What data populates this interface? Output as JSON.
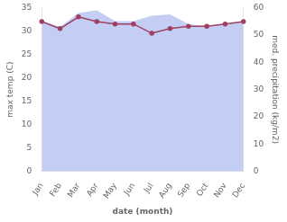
{
  "chart_data": {
    "type": "line",
    "categories": [
      "Jan",
      "Feb",
      "Mar",
      "Apr",
      "May",
      "Jun",
      "Jul",
      "Aug",
      "Sep",
      "Oct",
      "Nov",
      "Dec"
    ],
    "xlabel": "date (month)",
    "ylabel": "max temp (C)",
    "y2label": "med. precipitation (kg/m2)",
    "series": [
      {
        "type": "area",
        "color": "#b0bcf0",
        "axis": "y2",
        "values": [
          55,
          53,
          58,
          59,
          55,
          55,
          57,
          57.5,
          54,
          53,
          54,
          55
        ]
      },
      {
        "type": "line",
        "color": "#a04060",
        "values": [
          32.0,
          30.5,
          33.0,
          32.0,
          31.5,
          31.5,
          29.5,
          30.5,
          31.0,
          31.0,
          31.5,
          32.0
        ]
      }
    ],
    "ylim": [
      0,
      35
    ],
    "yticks": [
      0,
      5,
      10,
      15,
      20,
      25,
      30,
      35
    ],
    "y2lim": [
      0,
      60
    ],
    "y2ticks": [
      0,
      10,
      20,
      30,
      40,
      50,
      60
    ],
    "grid": false
  }
}
